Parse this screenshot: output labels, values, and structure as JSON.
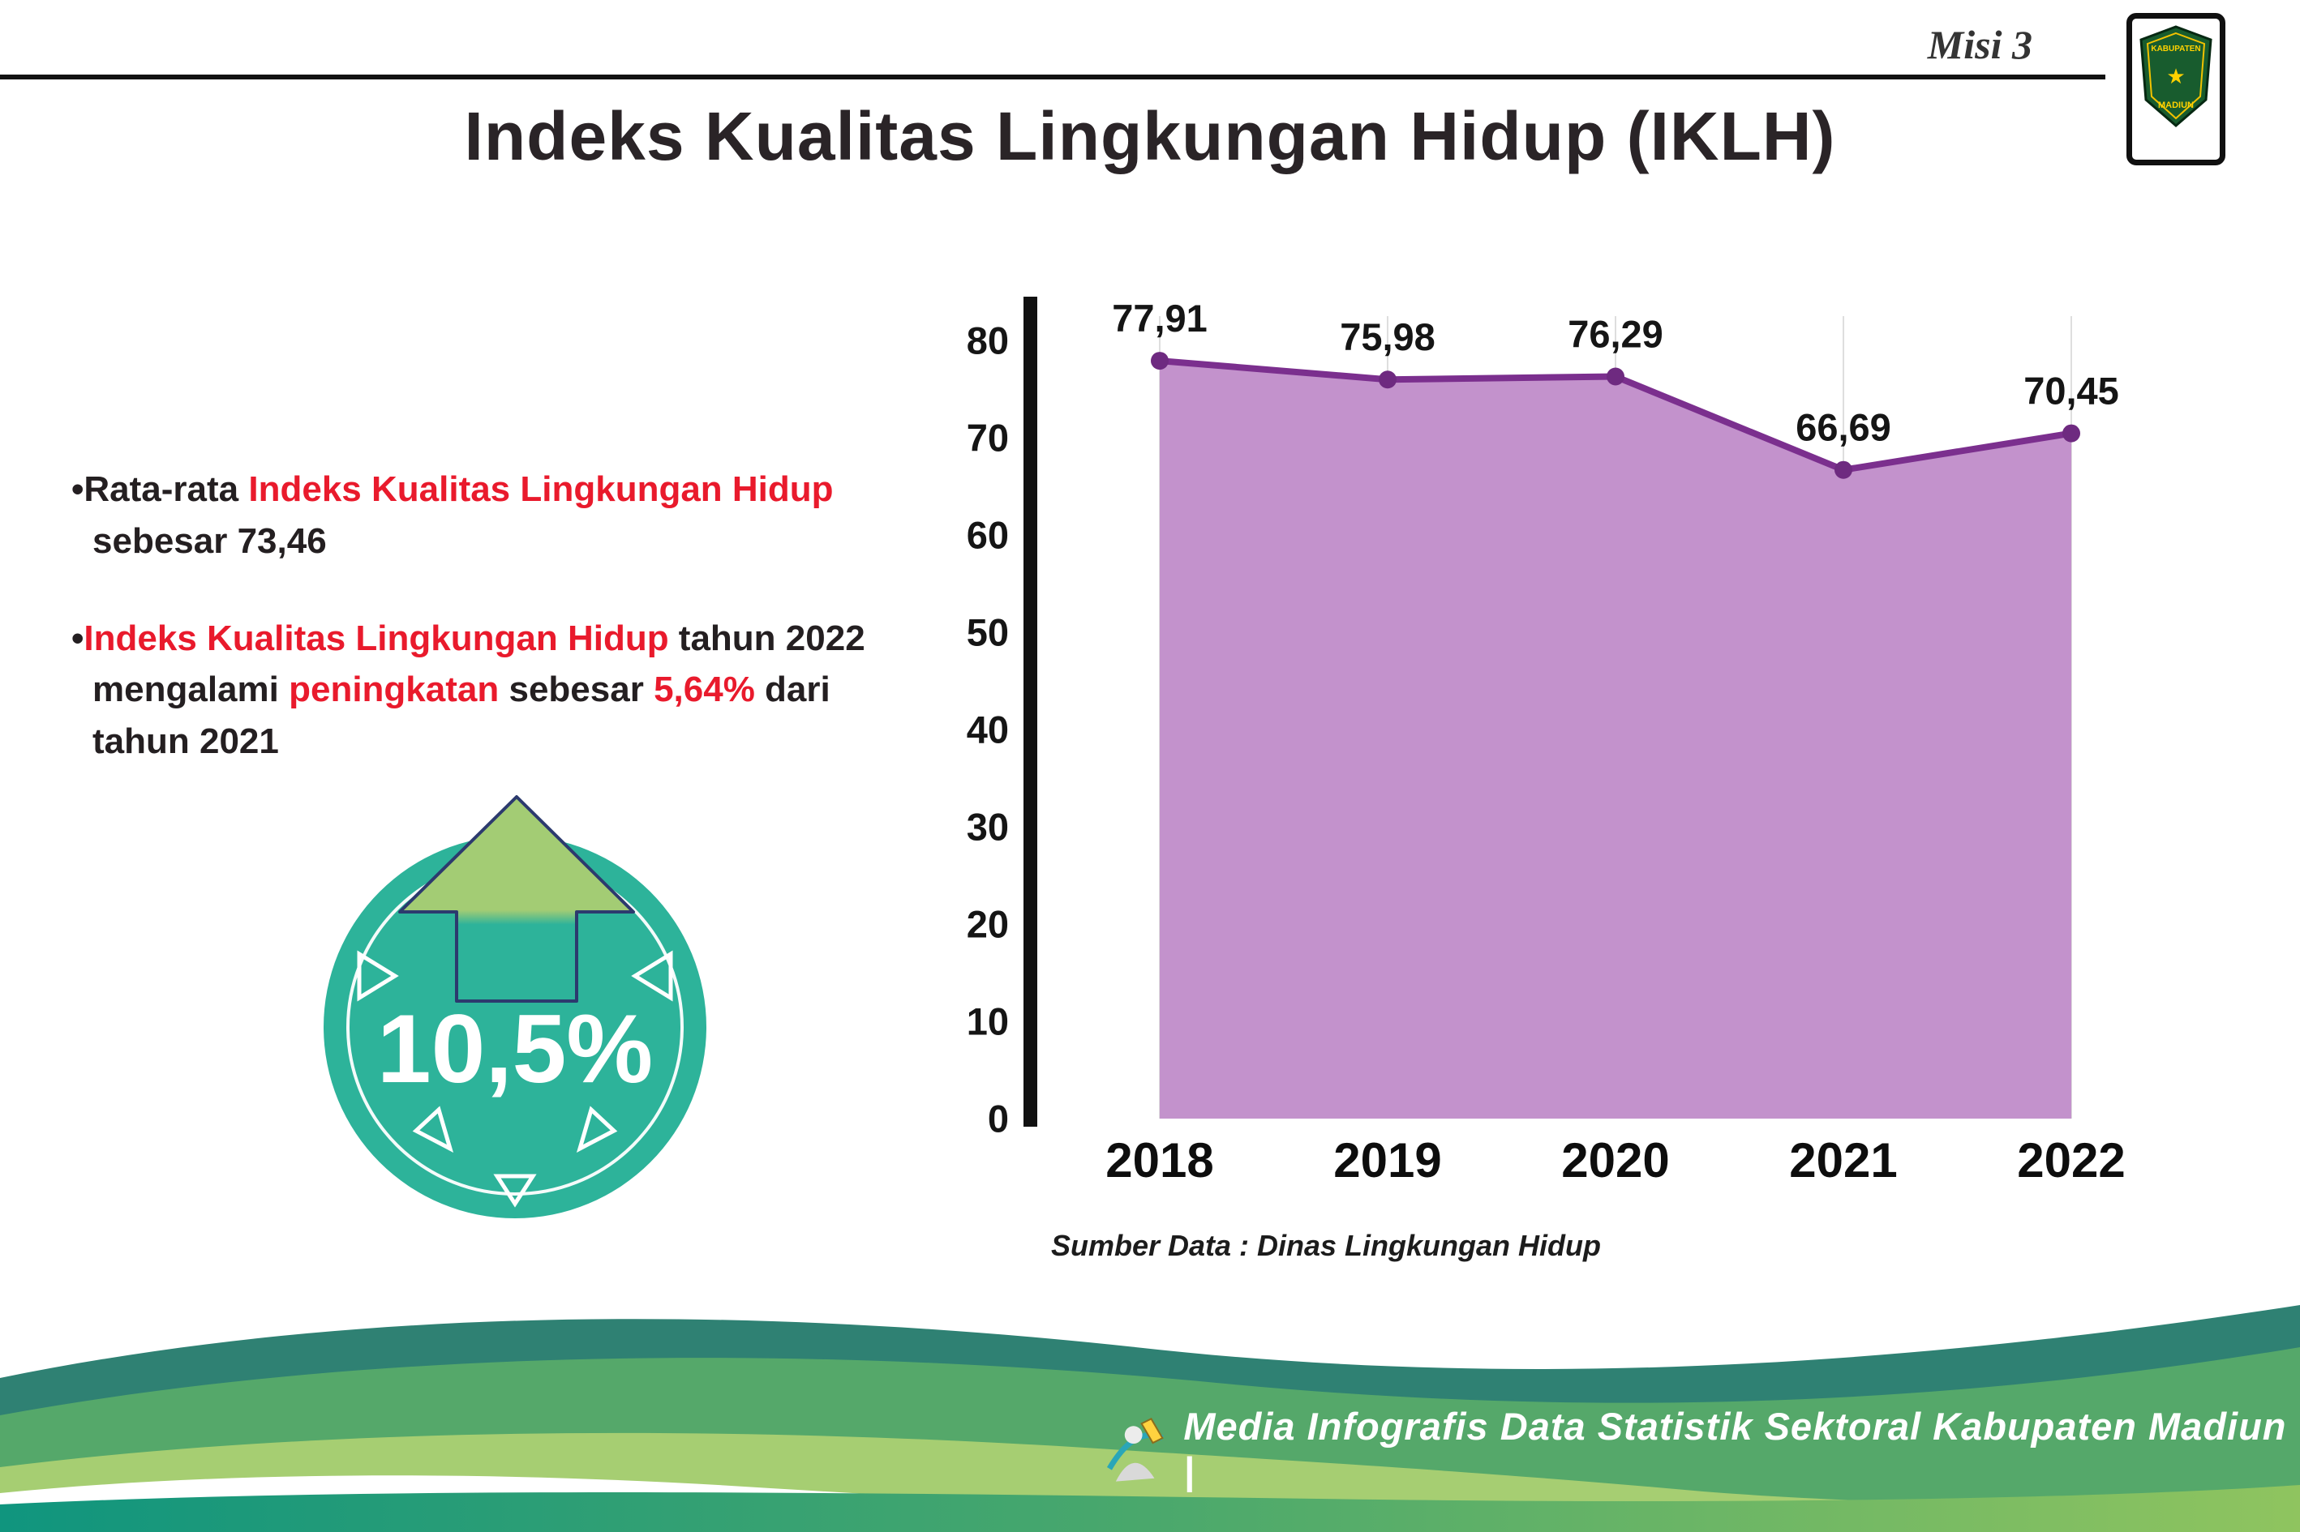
{
  "header": {
    "misi_label": "Misi 3",
    "title": "Indeks Kualitas Lingkungan Hidup (IKLH)",
    "logo": {
      "line1": "KABUPATEN",
      "line2": "MADIUN"
    }
  },
  "bullets": {
    "dot": "•",
    "b1": {
      "p1": "Rata-rata ",
      "p2": "Indeks Kualitas Lingkungan Hidup",
      "p3": " sebesar 73,46"
    },
    "b2": {
      "p1": "Indeks Kualitas Lingkungan Hidup",
      "p2": " tahun 2022 mengalami ",
      "p3": "peningkatan",
      "p4": " sebesar ",
      "p5": "5,64%",
      "p6": " dari tahun 2021"
    }
  },
  "badge": {
    "value": "10,5%"
  },
  "chart_data": {
    "type": "area",
    "title": "Indeks Kualitas Lingkungan Hidup (IKLH)",
    "categories": [
      "2018",
      "2019",
      "2020",
      "2021",
      "2022"
    ],
    "values": [
      77.91,
      75.98,
      76.29,
      66.69,
      70.45
    ],
    "value_labels": [
      "77,91",
      "75,98",
      "76,29",
      "66,69",
      "70,45"
    ],
    "xlabel": "",
    "ylabel": "",
    "ylim": [
      0,
      80
    ],
    "yticks": [
      0,
      10,
      20,
      30,
      40,
      50,
      60,
      70,
      80
    ],
    "grid": "vertical-light",
    "legend": "none",
    "source": "Sumber Data : Dinas Lingkungan Hidup",
    "colors": {
      "line": "#7b2f8e",
      "fill": "#c392cc",
      "marker": "#6e2a80",
      "axis": "#111111"
    }
  },
  "footer": {
    "credit": "Media Infografis Data Statistik Sektoral Kabupaten Madiun |"
  },
  "colors": {
    "accent_red": "#e91a2c",
    "badge_teal": "#2db39a",
    "arrow_green": "#a3cc74",
    "arrow_outline": "#2c3a6e",
    "text_dark": "#241f21"
  }
}
